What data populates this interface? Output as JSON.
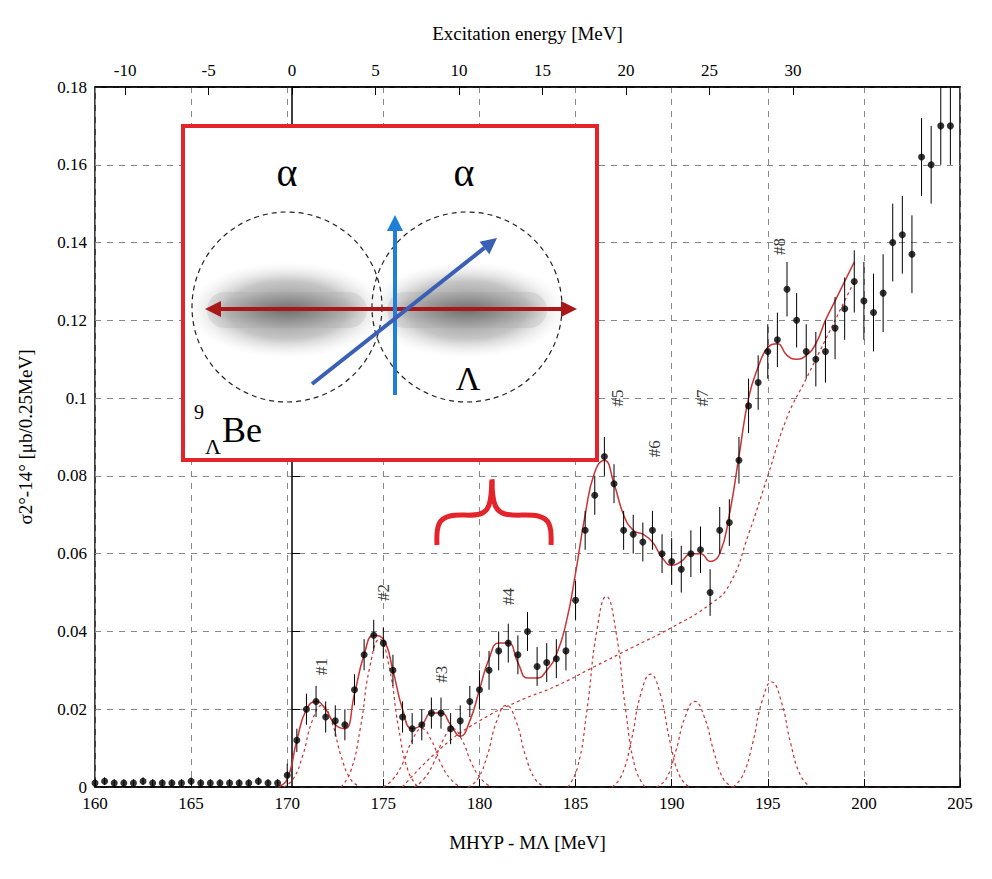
{
  "chart_data": {
    "type": "scatter",
    "xlabel": "MHYP - MΛ [MeV]",
    "ylabel": "σ2°-14° [μb/0.25MeV]",
    "x2label": "Excitation energy [MeV]",
    "xlim": [
      160,
      205
    ],
    "xticks": [
      160,
      165,
      170,
      175,
      180,
      185,
      190,
      195,
      200,
      205
    ],
    "ylim": [
      0,
      0.18
    ],
    "yticks": [
      0,
      0.02,
      0.04,
      0.06,
      0.08,
      0.1,
      0.12,
      0.14,
      0.16,
      0.18
    ],
    "x2lim": [
      -11.8,
      40
    ],
    "x2ticks": [
      -10,
      -5,
      0,
      5,
      10,
      15,
      20,
      25,
      30
    ],
    "grid": true,
    "series": [
      {
        "type": "scatter",
        "color": "#000000",
        "marker": "circle",
        "x": [
          160,
          160.5,
          161,
          161.5,
          162,
          162.5,
          163,
          163.5,
          164,
          164.5,
          165,
          165.5,
          166,
          166.5,
          167,
          167.5,
          168,
          168.5,
          169,
          169.5,
          170,
          170.5,
          171,
          171.5,
          172,
          172.5,
          173,
          173.5,
          174,
          174.5,
          175,
          175.5,
          176,
          176.5,
          177,
          177.5,
          178,
          178.5,
          179,
          179.5,
          180,
          180.5,
          181,
          181.5,
          182,
          182.5,
          183,
          183.5,
          184,
          184.5,
          185,
          185.5,
          186,
          186.5,
          187,
          187.5,
          188,
          188.5,
          189,
          189.5,
          190,
          190.5,
          191,
          191.5,
          192,
          192.5,
          193,
          193.5,
          194,
          194.5,
          195,
          195.5,
          196,
          196.5,
          197,
          197.5,
          198,
          198.5,
          199,
          199.5,
          200,
          200.5,
          201,
          201.5,
          202,
          202.5,
          203,
          203.5,
          204,
          204.5
        ],
        "values": [
          0.001,
          0.0015,
          0.001,
          0.001,
          0.001,
          0.0015,
          0.001,
          0.001,
          0.001,
          0.001,
          0.0015,
          0.001,
          0.001,
          0.001,
          0.001,
          0.001,
          0.001,
          0.0015,
          0.001,
          0.001,
          0.003,
          0.012,
          0.02,
          0.022,
          0.018,
          0.017,
          0.016,
          0.025,
          0.034,
          0.039,
          0.037,
          0.03,
          0.018,
          0.015,
          0.016,
          0.019,
          0.019,
          0.015,
          0.017,
          0.022,
          0.025,
          0.03,
          0.035,
          0.037,
          0.034,
          0.04,
          0.031,
          0.032,
          0.033,
          0.035,
          0.048,
          0.066,
          0.075,
          0.085,
          0.078,
          0.066,
          0.065,
          0.063,
          0.066,
          0.06,
          0.058,
          0.056,
          0.06,
          0.061,
          0.05,
          0.066,
          0.068,
          0.084,
          0.098,
          0.104,
          0.112,
          0.115,
          0.128,
          0.12,
          0.112,
          0.11,
          0.112,
          0.118,
          0.123,
          0.13,
          0.125,
          0.122,
          0.127,
          0.14,
          0.142,
          0.137,
          0.162,
          0.16,
          0.17,
          0.17
        ],
        "errors": [
          0.001,
          0.001,
          0.001,
          0.001,
          0.001,
          0.001,
          0.001,
          0.001,
          0.001,
          0.001,
          0.001,
          0.001,
          0.001,
          0.001,
          0.001,
          0.001,
          0.001,
          0.001,
          0.001,
          0.001,
          0.003,
          0.003,
          0.004,
          0.004,
          0.004,
          0.004,
          0.004,
          0.004,
          0.004,
          0.004,
          0.004,
          0.004,
          0.004,
          0.004,
          0.004,
          0.004,
          0.004,
          0.004,
          0.004,
          0.004,
          0.005,
          0.005,
          0.005,
          0.005,
          0.005,
          0.005,
          0.005,
          0.005,
          0.005,
          0.005,
          0.005,
          0.005,
          0.005,
          0.005,
          0.005,
          0.005,
          0.005,
          0.005,
          0.005,
          0.005,
          0.006,
          0.006,
          0.006,
          0.006,
          0.006,
          0.006,
          0.006,
          0.006,
          0.007,
          0.007,
          0.007,
          0.007,
          0.007,
          0.007,
          0.007,
          0.007,
          0.008,
          0.008,
          0.008,
          0.008,
          0.01,
          0.01,
          0.01,
          0.01,
          0.01,
          0.01,
          0.01,
          0.01,
          0.01,
          0.01
        ]
      },
      {
        "type": "line",
        "color": "#cc3333",
        "line_style": "solid",
        "x": [
          169.5,
          170,
          170.5,
          171,
          171.5,
          172,
          172.5,
          173,
          173.5,
          174,
          174.5,
          175,
          175.5,
          176,
          176.5,
          177,
          177.5,
          178,
          178.5,
          179,
          179.5,
          180,
          180.5,
          181,
          181.5,
          182,
          182.5,
          183,
          183.5,
          184,
          184.5,
          185,
          185.5,
          186,
          186.5,
          187,
          187.5,
          188,
          188.5,
          189,
          189.5,
          190,
          190.5,
          191,
          191.5,
          192,
          192.5,
          193,
          193.5,
          194,
          194.5,
          195,
          195.5,
          196,
          196.5,
          197,
          197.5,
          198,
          198.5,
          199,
          199.5
        ],
        "values": [
          0,
          0.002,
          0.012,
          0.02,
          0.022,
          0.02,
          0.016,
          0.015,
          0.024,
          0.034,
          0.039,
          0.038,
          0.03,
          0.02,
          0.015,
          0.016,
          0.019,
          0.019,
          0.016,
          0.013,
          0.017,
          0.025,
          0.033,
          0.037,
          0.037,
          0.032,
          0.028,
          0.028,
          0.03,
          0.034,
          0.042,
          0.055,
          0.07,
          0.081,
          0.084,
          0.078,
          0.07,
          0.066,
          0.065,
          0.063,
          0.059,
          0.057,
          0.058,
          0.06,
          0.06,
          0.058,
          0.06,
          0.07,
          0.085,
          0.1,
          0.108,
          0.113,
          0.114,
          0.111,
          0.11,
          0.111,
          0.114,
          0.12,
          0.125,
          0.13,
          0.135
        ]
      },
      {
        "type": "line",
        "color": "#cc3333",
        "line_style": "dashed",
        "x": [
          176,
          178,
          180,
          182,
          184,
          186,
          188,
          190,
          192,
          193,
          194,
          195,
          196,
          197,
          198,
          199,
          199.5
        ],
        "values": [
          0,
          0.01,
          0.017,
          0.022,
          0.026,
          0.031,
          0.036,
          0.041,
          0.047,
          0.052,
          0.065,
          0.08,
          0.095,
          0.105,
          0.115,
          0.125,
          0.13
        ]
      },
      {
        "type": "line",
        "color": "#cc3333",
        "line_style": "dashed",
        "x": [
          169.8,
          170.3,
          170.8,
          171.3,
          171.8,
          172.3,
          172.8,
          173.3,
          173.8
        ],
        "values": [
          0,
          0.002,
          0.008,
          0.017,
          0.021,
          0.017,
          0.008,
          0.002,
          0
        ]
      },
      {
        "type": "line",
        "color": "#cc3333",
        "line_style": "dashed",
        "x": [
          172.8,
          173.3,
          173.8,
          174.3,
          174.8,
          175.3,
          175.8,
          176.3,
          176.8
        ],
        "values": [
          0,
          0.004,
          0.015,
          0.031,
          0.038,
          0.031,
          0.015,
          0.004,
          0
        ]
      },
      {
        "type": "line",
        "color": "#cc3333",
        "line_style": "dashed",
        "x": [
          175,
          175.5,
          176,
          176.5,
          177,
          177.5,
          178,
          178.5,
          179
        ],
        "values": [
          0,
          0.002,
          0.006,
          0.012,
          0.015,
          0.012,
          0.006,
          0.002,
          0
        ]
      },
      {
        "type": "line",
        "color": "#cc3333",
        "line_style": "dashed",
        "x": [
          176.6,
          177.1,
          177.6,
          178.1,
          178.6,
          179.1,
          179.6,
          180.1,
          180.6
        ],
        "values": [
          0,
          0.002,
          0.006,
          0.012,
          0.015,
          0.012,
          0.006,
          0.002,
          0
        ]
      },
      {
        "type": "line",
        "color": "#cc3333",
        "line_style": "dashed",
        "x": [
          179.4,
          179.9,
          180.4,
          180.9,
          181.4,
          181.9,
          182.4,
          182.9,
          183.4
        ],
        "values": [
          0,
          0.002,
          0.008,
          0.017,
          0.021,
          0.017,
          0.008,
          0.002,
          0
        ]
      },
      {
        "type": "line",
        "color": "#cc3333",
        "line_style": "dashed",
        "x": [
          184.6,
          185.1,
          185.6,
          186.1,
          186.6,
          187.1,
          187.6,
          188.1,
          188.6
        ],
        "values": [
          0,
          0.005,
          0.02,
          0.04,
          0.049,
          0.04,
          0.02,
          0.005,
          0
        ]
      },
      {
        "type": "line",
        "color": "#cc3333",
        "line_style": "dashed",
        "x": [
          186.9,
          187.4,
          187.9,
          188.4,
          188.9,
          189.4,
          189.9,
          190.4,
          190.9
        ],
        "values": [
          0,
          0.003,
          0.012,
          0.024,
          0.029,
          0.024,
          0.012,
          0.003,
          0
        ]
      },
      {
        "type": "line",
        "color": "#cc3333",
        "line_style": "dashed",
        "x": [
          189.2,
          189.7,
          190.2,
          190.7,
          191.2,
          191.7,
          192.2,
          192.7,
          193.2
        ],
        "values": [
          0,
          0.002,
          0.009,
          0.018,
          0.022,
          0.018,
          0.009,
          0.002,
          0
        ]
      },
      {
        "type": "line",
        "color": "#cc3333",
        "line_style": "dashed",
        "x": [
          193.2,
          193.7,
          194.2,
          194.7,
          195.2,
          195.7,
          196.2,
          196.7,
          197.2
        ],
        "values": [
          0,
          0.003,
          0.011,
          0.022,
          0.027,
          0.022,
          0.011,
          0.003,
          0
        ]
      }
    ],
    "annotations": [
      {
        "text": "#1",
        "x": 171.8,
        "y": 0.031
      },
      {
        "text": "#2",
        "x": 175,
        "y": 0.05
      },
      {
        "text": "#3",
        "x": 178,
        "y": 0.029
      },
      {
        "text": "#4",
        "x": 181.5,
        "y": 0.049
      },
      {
        "text": "#5",
        "x": 187.2,
        "y": 0.1
      },
      {
        "text": "#6",
        "x": 189.1,
        "y": 0.087
      },
      {
        "text": "#7",
        "x": 191.6,
        "y": 0.1
      },
      {
        "text": "#8",
        "x": 195.6,
        "y": 0.139
      }
    ],
    "inset": {
      "left_cluster": "α",
      "right_cluster": "α",
      "hyperon": "Λ",
      "nucleus": {
        "mass_number": "9",
        "hyperon": "Λ",
        "element": "Be"
      }
    }
  }
}
